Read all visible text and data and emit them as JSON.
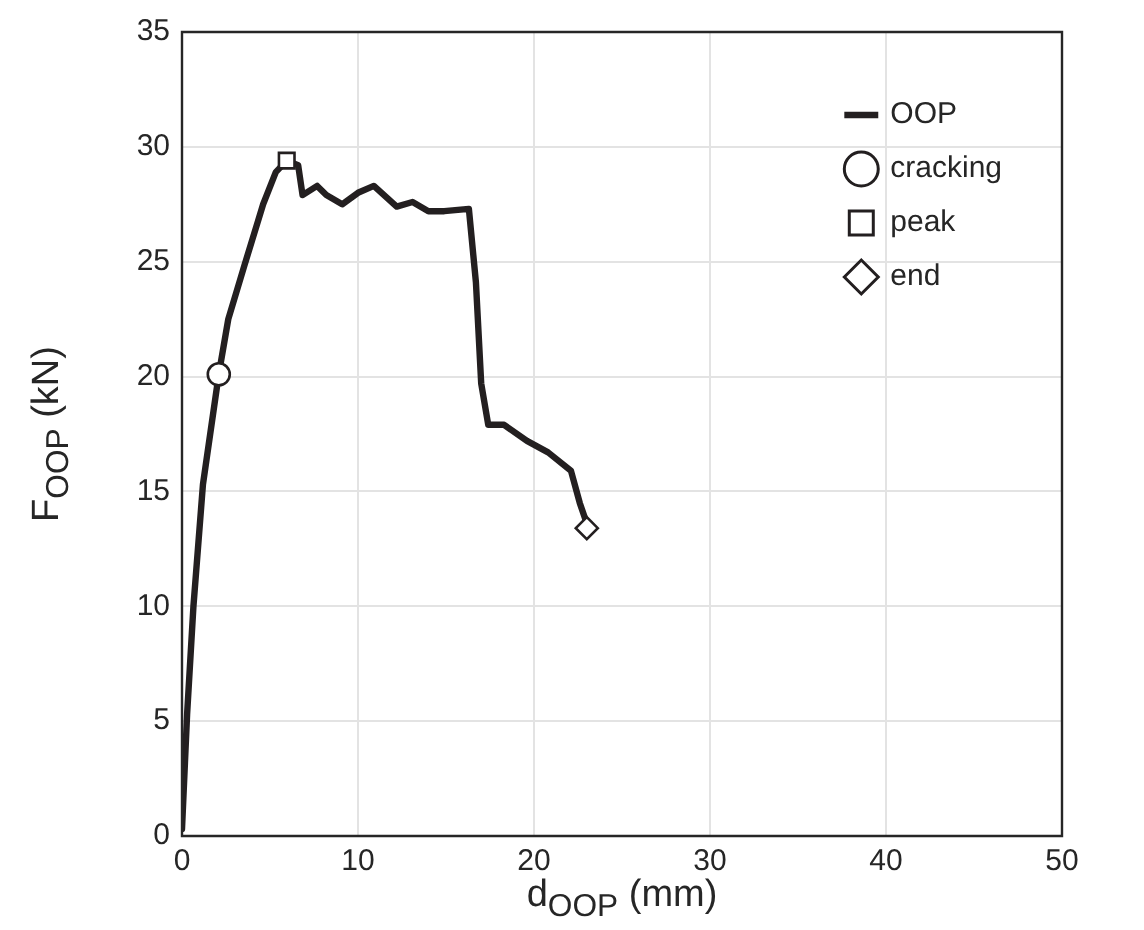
{
  "chart_data": {
    "type": "line",
    "xlabel": "d$_{OOP}$ (mm)",
    "ylabel": "F$_{OOP}$ (kN)",
    "xlim": [
      0,
      50
    ],
    "xticks": [
      0,
      10,
      20,
      30,
      40,
      50
    ],
    "ylim": [
      0,
      35
    ],
    "yticks": [
      0,
      5,
      10,
      15,
      20,
      25,
      30,
      35
    ],
    "grid": true,
    "legend": "top right",
    "series": [
      {
        "name": "OOP",
        "type": "line",
        "color": "#231f20",
        "marker": "none",
        "line_style": "solid",
        "x": [
          0,
          0.29,
          0.65,
          1.19,
          2.09,
          2.63,
          3.53,
          4.61,
          5.33,
          5.95,
          6.6,
          6.85,
          7.68,
          8.2,
          9.1,
          10.0,
          10.9,
          12.2,
          13.1,
          14.0,
          14.9,
          16.3,
          16.7,
          17.0,
          17.4,
          18.3,
          19.6,
          20.8,
          22.1,
          22.6,
          23.0
        ],
        "values": [
          0.3,
          5.3,
          10,
          15.3,
          20.1,
          22.5,
          24.8,
          27.5,
          28.9,
          29.4,
          29.2,
          27.9,
          28.3,
          27.9,
          27.5,
          28.0,
          28.3,
          27.4,
          27.6,
          27.2,
          27.2,
          27.3,
          24.1,
          19.7,
          17.9,
          17.9,
          17.2,
          16.7,
          15.9,
          14.5,
          13.6
        ]
      },
      {
        "name": "cracking",
        "type": "scatter",
        "color": "#231f20",
        "marker": "circle",
        "x": [
          2.09
        ],
        "values": [
          20.1
        ]
      },
      {
        "name": "peak",
        "type": "scatter",
        "color": "#231f20",
        "marker": "square",
        "x": [
          5.95
        ],
        "values": [
          29.4
        ]
      },
      {
        "name": "end",
        "type": "scatter",
        "color": "#231f20",
        "marker": "diamond",
        "x": [
          23.0
        ],
        "values": [
          13.4
        ]
      }
    ]
  }
}
